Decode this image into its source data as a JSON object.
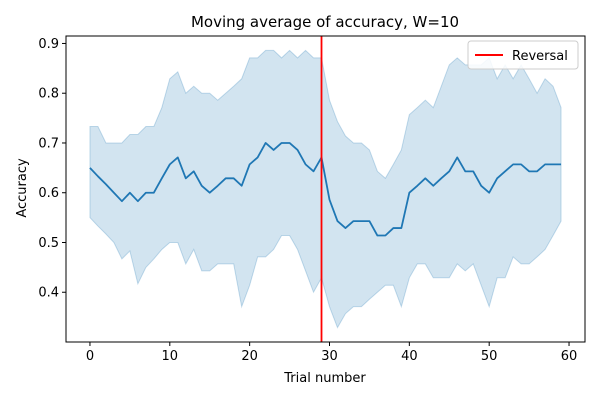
{
  "chart_data": {
    "type": "line",
    "title": "Moving average of accuracy, W=10",
    "xlabel": "Trial number",
    "ylabel": "Accuracy",
    "xlim": [
      -3,
      62
    ],
    "ylim": [
      0.3,
      0.915
    ],
    "xticks": [
      0,
      10,
      20,
      30,
      40,
      50,
      60
    ],
    "yticks": [
      0.4,
      0.5,
      0.6,
      0.7,
      0.8,
      0.9
    ],
    "grid": false,
    "legend_position": "top-right",
    "colors": {
      "mean_line": "#1f77b4",
      "band": "#1f77b4",
      "reversal": "#ff0000"
    },
    "series": [
      {
        "x": [
          0,
          1,
          2,
          3,
          4,
          5,
          6,
          7,
          8,
          9,
          10,
          11,
          12,
          13,
          14,
          15,
          16,
          17,
          18,
          19,
          20,
          21,
          22,
          23,
          24,
          25,
          26,
          27,
          28,
          29,
          30,
          31,
          32,
          33,
          34,
          35,
          36,
          37,
          38,
          39,
          40,
          41,
          42,
          43,
          44,
          45,
          46,
          47,
          48,
          49,
          50,
          51,
          52,
          53,
          54,
          55,
          56,
          57,
          58,
          59
        ],
        "mean": [
          0.65,
          0.633,
          0.617,
          0.6,
          0.583,
          0.6,
          0.583,
          0.6,
          0.6,
          0.629,
          0.657,
          0.671,
          0.629,
          0.643,
          0.614,
          0.6,
          0.614,
          0.629,
          0.629,
          0.614,
          0.657,
          0.671,
          0.7,
          0.686,
          0.7,
          0.7,
          0.686,
          0.657,
          0.643,
          0.671,
          0.586,
          0.543,
          0.529,
          0.543,
          0.543,
          0.543,
          0.514,
          0.514,
          0.529,
          0.529,
          0.6,
          0.614,
          0.629,
          0.614,
          0.629,
          0.643,
          0.671,
          0.643,
          0.643,
          0.614,
          0.6,
          0.629,
          0.643,
          0.657,
          0.657,
          0.643,
          0.643,
          0.657,
          0.657,
          0.657
        ],
        "upper": [
          0.733,
          0.733,
          0.7,
          0.7,
          0.7,
          0.717,
          0.717,
          0.733,
          0.733,
          0.771,
          0.829,
          0.843,
          0.8,
          0.814,
          0.8,
          0.8,
          0.786,
          0.8,
          0.814,
          0.829,
          0.871,
          0.871,
          0.886,
          0.886,
          0.871,
          0.886,
          0.871,
          0.886,
          0.871,
          0.871,
          0.786,
          0.743,
          0.714,
          0.7,
          0.7,
          0.686,
          0.643,
          0.629,
          0.657,
          0.686,
          0.757,
          0.771,
          0.786,
          0.771,
          0.814,
          0.857,
          0.871,
          0.857,
          0.857,
          0.857,
          0.871,
          0.829,
          0.857,
          0.829,
          0.857,
          0.829,
          0.8,
          0.829,
          0.814,
          0.771
        ],
        "lower": [
          0.55,
          0.533,
          0.517,
          0.5,
          0.467,
          0.483,
          0.417,
          0.45,
          0.467,
          0.486,
          0.5,
          0.5,
          0.457,
          0.486,
          0.443,
          0.443,
          0.457,
          0.457,
          0.457,
          0.371,
          0.414,
          0.471,
          0.471,
          0.486,
          0.514,
          0.514,
          0.486,
          0.443,
          0.4,
          0.429,
          0.371,
          0.329,
          0.357,
          0.371,
          0.371,
          0.386,
          0.4,
          0.414,
          0.414,
          0.371,
          0.429,
          0.457,
          0.457,
          0.429,
          0.429,
          0.429,
          0.457,
          0.443,
          0.457,
          0.414,
          0.371,
          0.429,
          0.429,
          0.471,
          0.457,
          0.457,
          0.471,
          0.486,
          0.514,
          0.543
        ]
      }
    ],
    "reversal": {
      "x": 29,
      "label": "Reversal"
    }
  }
}
